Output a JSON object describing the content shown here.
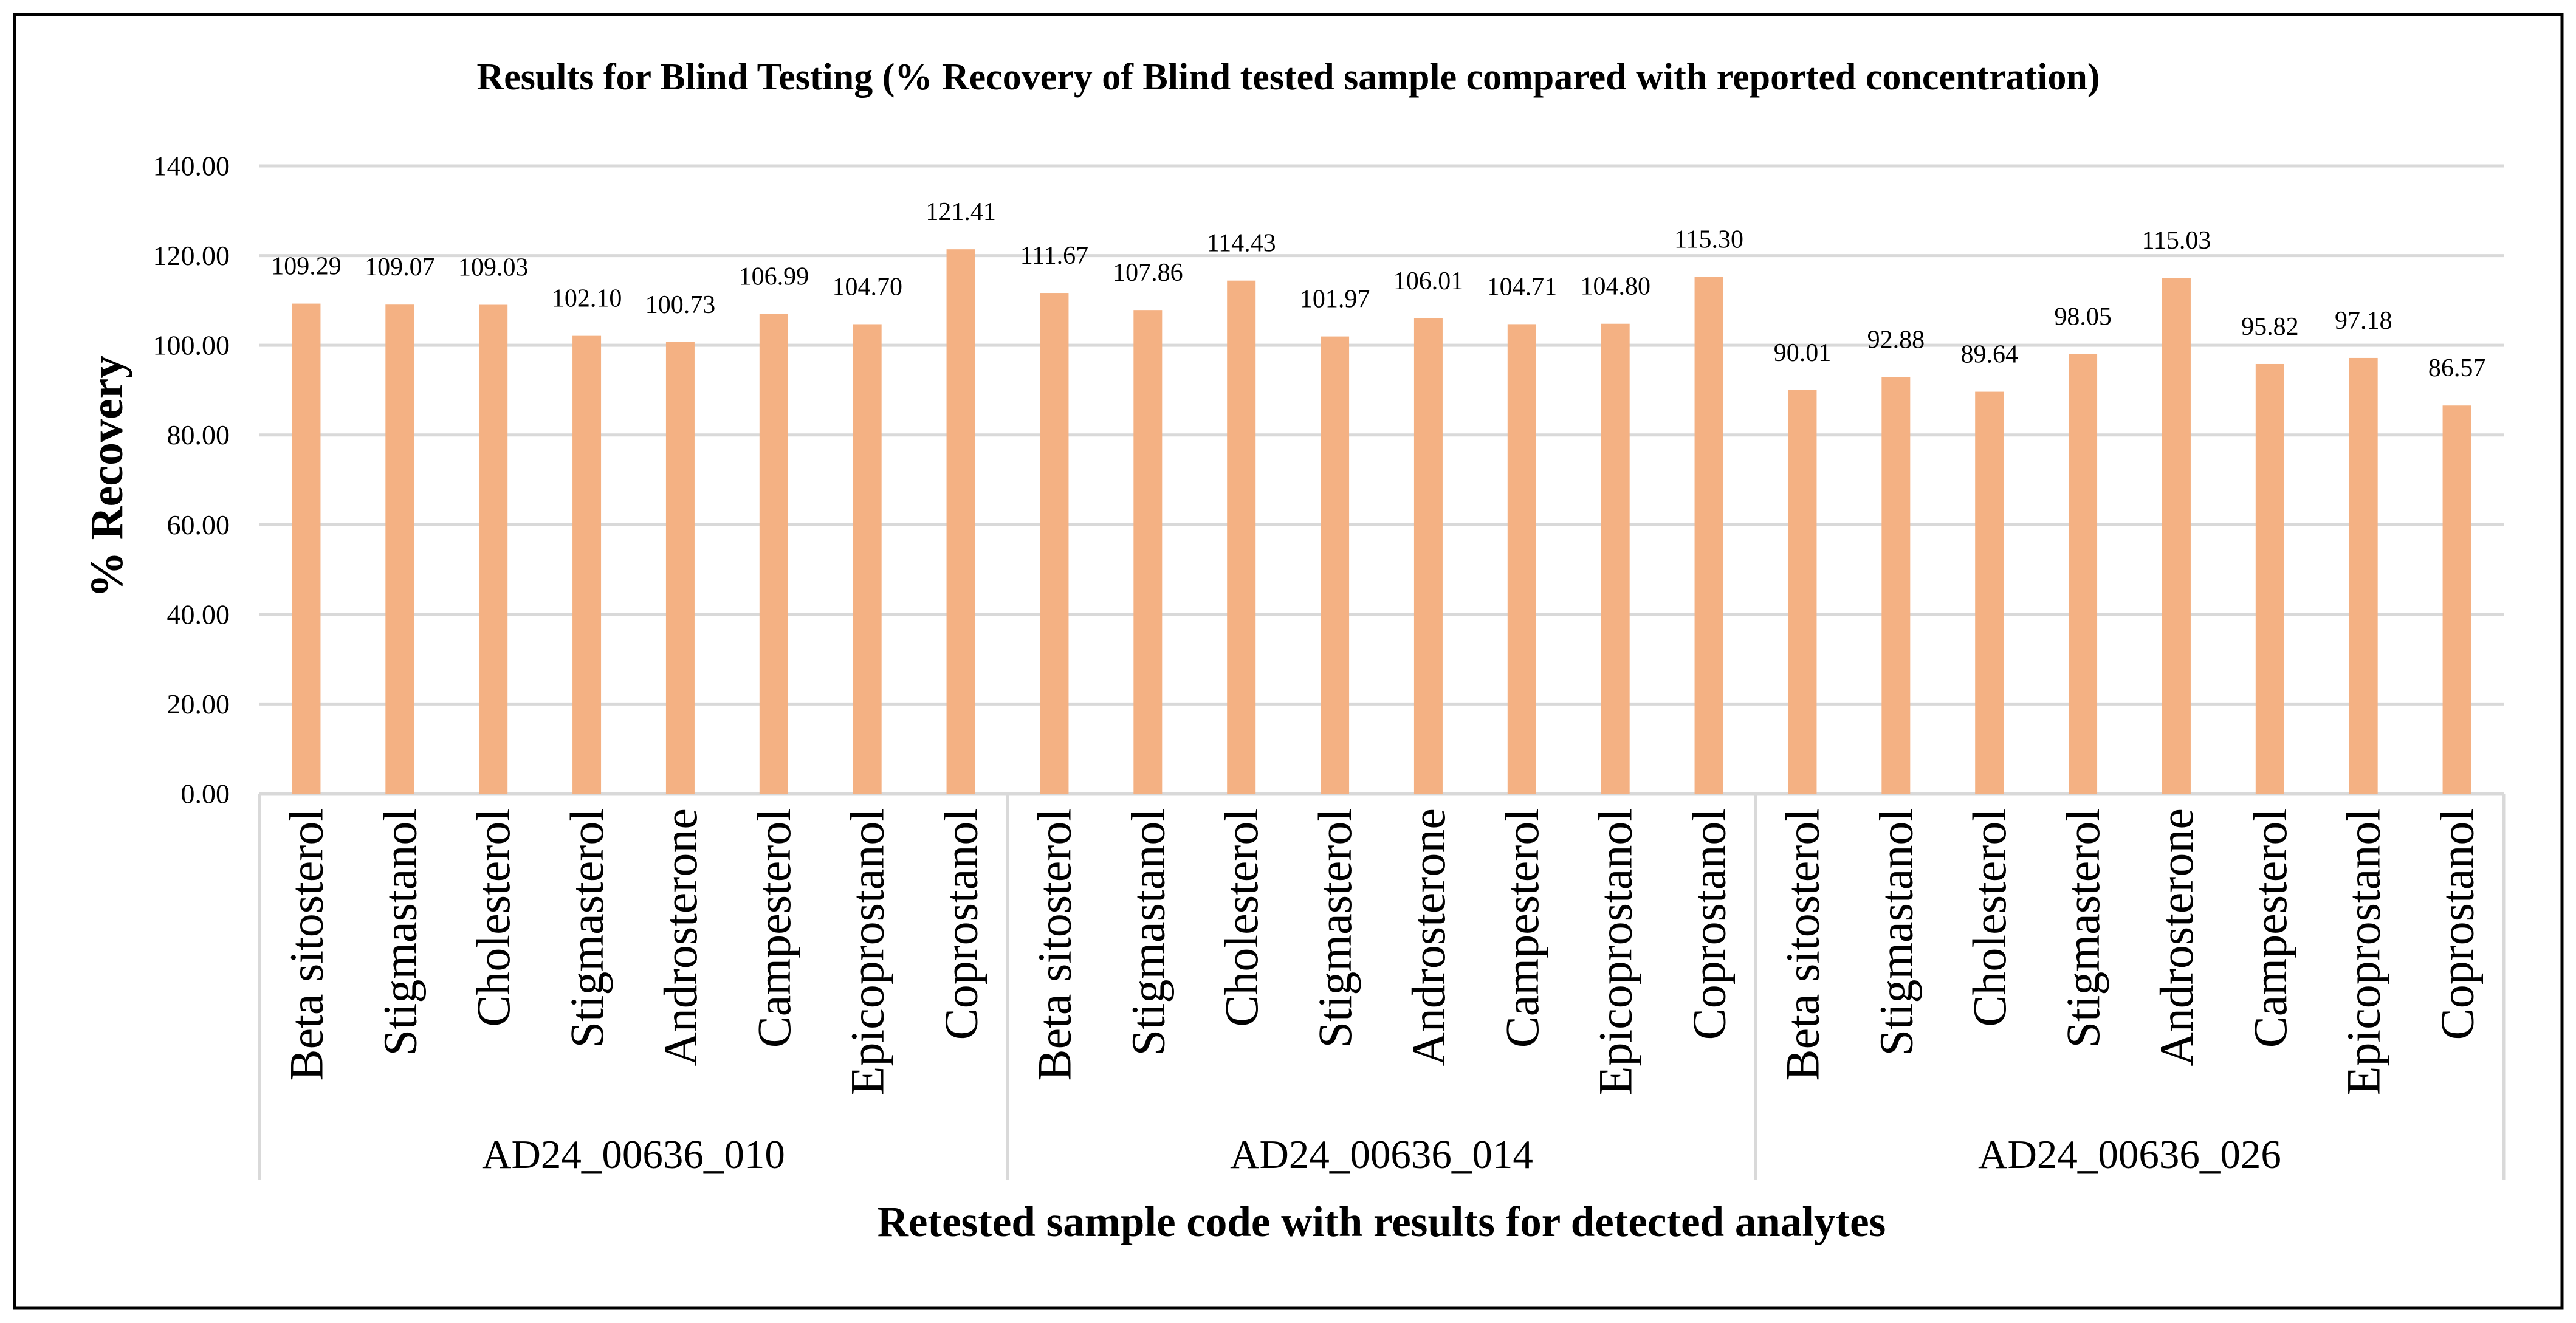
{
  "chart_data": {
    "type": "bar",
    "title": "Results for Blind Testing (% Recovery of Blind tested sample compared with reported concentration)",
    "xlabel": "Retested sample code with results for detected analytes",
    "ylabel": "% Recovery",
    "ylim": [
      0,
      140
    ],
    "yticks": [
      0,
      20,
      40,
      60,
      80,
      100,
      120,
      140
    ],
    "grid": true,
    "data_labels": true,
    "bar_color": "#F4B183",
    "grid_color": "#D9D9D9",
    "groups": [
      {
        "name": "AD24_00636_010",
        "categories": [
          "Beta sitosterol",
          "Stigmastanol",
          "Cholesterol",
          "Stigmasterol",
          "Androsterone",
          "Campesterol",
          "Epicoprostanol",
          "Coprostanol"
        ],
        "values": [
          109.29,
          109.07,
          109.03,
          102.1,
          100.73,
          106.99,
          104.7,
          121.41
        ]
      },
      {
        "name": "AD24_00636_014",
        "categories": [
          "Beta sitosterol",
          "Stigmastanol",
          "Cholesterol",
          "Stigmasterol",
          "Androsterone",
          "Campesterol",
          "Epicoprostanol",
          "Coprostanol"
        ],
        "values": [
          111.67,
          107.86,
          114.43,
          101.97,
          106.01,
          104.71,
          104.8,
          115.3
        ]
      },
      {
        "name": "AD24_00636_026",
        "categories": [
          "Beta sitosterol",
          "Stigmastanol",
          "Cholesterol",
          "Stigmasterol",
          "Androsterone",
          "Campesterol",
          "Epicoprostanol",
          "Coprostanol"
        ],
        "values": [
          90.01,
          92.88,
          89.64,
          98.05,
          115.03,
          95.82,
          97.18,
          86.57
        ]
      }
    ]
  }
}
